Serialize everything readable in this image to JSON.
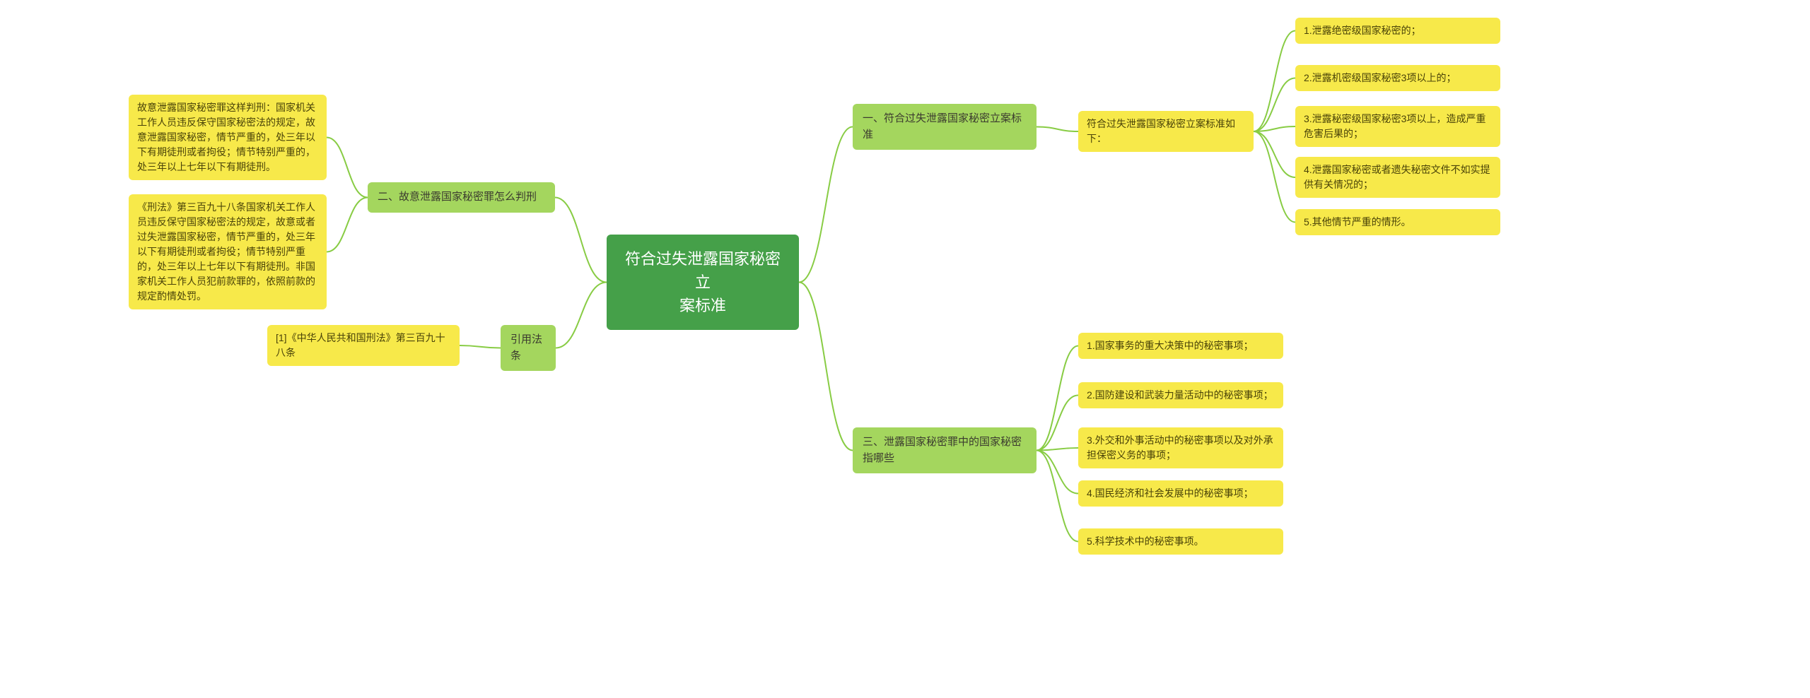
{
  "colors": {
    "root_bg": "#45a049",
    "root_fg": "#ffffff",
    "branch_bg": "#a4d65e",
    "branch_fg": "#3b3b2f",
    "leaf_bg": "#f7e94a",
    "leaf_fg": "#4a4308",
    "connector": "#88cc44",
    "background": "#ffffff"
  },
  "root": {
    "title_l1": "符合过失泄露国家秘密立",
    "title_l2": "案标准"
  },
  "left": {
    "branch2": {
      "label": "二、故意泄露国家秘密罪怎么判刑",
      "leaf1": "故意泄露国家秘密罪这样判刑：国家机关工作人员违反保守国家秘密法的规定，故意泄露国家秘密，情节严重的，处三年以下有期徒刑或者拘役；情节特别严重的，处三年以上七年以下有期徒刑。",
      "leaf2": "《刑法》第三百九十八条国家机关工作人员违反保守国家秘密法的规定，故意或者过失泄露国家秘密，情节严重的，处三年以下有期徒刑或者拘役；情节特别严重的，处三年以上七年以下有期徒刑。非国家机关工作人员犯前款罪的，依照前款的规定酌情处罚。"
    },
    "branch_cite": {
      "label": "引用法条",
      "leaf1": "[1]《中华人民共和国刑法》第三百九十八条"
    }
  },
  "right": {
    "branch1": {
      "label_l1": "一、符合过失泄露国家秘密立案标",
      "label_l2": "准",
      "sub": "符合过失泄露国家秘密立案标准如下：",
      "items": [
        "1.泄露绝密级国家秘密的；",
        "2.泄露机密级国家秘密3项以上的；",
        "3.泄露秘密级国家秘密3项以上，造成严重危害后果的；",
        "4.泄露国家秘密或者遗失秘密文件不如实提供有关情况的；",
        "5.其他情节严重的情形。"
      ]
    },
    "branch3": {
      "label_l1": "三、泄露国家秘密罪中的国家秘密",
      "label_l2": "指哪些",
      "items": [
        "1.国家事务的重大决策中的秘密事项；",
        "2.国防建设和武装力量活动中的秘密事项；",
        "3.外交和外事活动中的秘密事项以及对外承担保密义务的事项；",
        "4.国民经济和社会发展中的秘密事项；",
        "5.科学技术中的秘密事项。"
      ]
    }
  }
}
